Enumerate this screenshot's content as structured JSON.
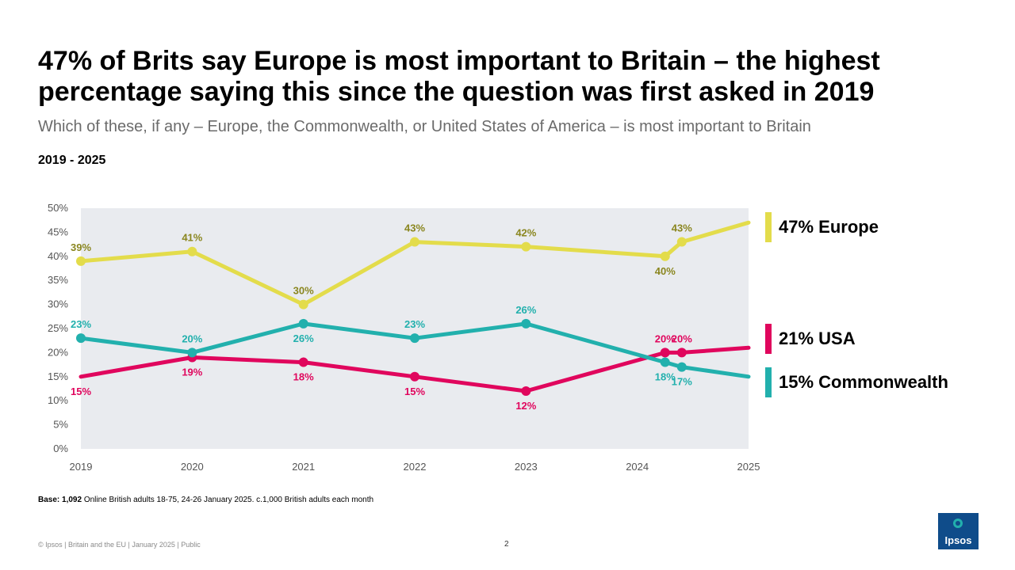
{
  "header": {
    "title": "47% of Brits say Europe is most important to Britain – the highest percentage saying this since the question was first asked in 2019",
    "subtitle": "Which of these, if any – Europe, the Commonwealth, or United States of America – is most important to Britain",
    "period": "2019 - 2025"
  },
  "legend": {
    "europe": "47% Europe",
    "usa": "21% USA",
    "commonwealth": "15% Commonwealth"
  },
  "footer": {
    "base_bold": "Base: 1,092",
    "base_rest": " Online British adults 18-75, 24-26 January 2025. c.1,000 British adults each month",
    "copyright": "© Ipsos | Britain and the EU | January 2025 | Public",
    "page_number": "2",
    "logo_text": "Ipsos"
  },
  "colors": {
    "europe": "#e3dc4b",
    "europe_label": "#8a861f",
    "usa": "#e0065d",
    "commonwealth": "#22b0ad",
    "plot_bg": "#e9ebef"
  },
  "chart_data": {
    "type": "line",
    "x_ticks": [
      2019,
      2020,
      2021,
      2022,
      2023,
      2024,
      2025
    ],
    "x_tick_labels": [
      "2019",
      "2020",
      "2021",
      "2022",
      "2023",
      "2024",
      "2025"
    ],
    "y_ticks": [
      0,
      5,
      10,
      15,
      20,
      25,
      30,
      35,
      40,
      45,
      50
    ],
    "y_tick_labels": [
      "0%",
      "5%",
      "10%",
      "15%",
      "20%",
      "25%",
      "30%",
      "35%",
      "40%",
      "45%",
      "50%"
    ],
    "xlim": [
      2019,
      2025
    ],
    "ylim": [
      0,
      50
    ],
    "series": [
      {
        "name": "Europe",
        "color_key": "europe",
        "x": [
          2019,
          2020,
          2021,
          2022,
          2023,
          2024.25,
          2024.4,
          2025
        ],
        "values": [
          39,
          41,
          30,
          43,
          42,
          40,
          43,
          47
        ],
        "labels": [
          "39%",
          "41%",
          "30%",
          "43%",
          "42%",
          "40%",
          "43%",
          null
        ],
        "label_pos": [
          "above",
          "above",
          "above",
          "above",
          "above",
          "below",
          "above",
          null
        ],
        "markers": [
          true,
          true,
          true,
          true,
          true,
          true,
          true,
          false
        ]
      },
      {
        "name": "USA",
        "color_key": "usa",
        "x": [
          2019,
          2020,
          2021,
          2022,
          2023,
          2024.25,
          2024.4,
          2025
        ],
        "values": [
          15,
          19,
          18,
          15,
          12,
          20,
          20,
          21
        ],
        "labels": [
          "15%",
          "19%",
          "18%",
          "15%",
          "12%",
          "20%",
          "20%",
          null
        ],
        "label_pos": [
          "below",
          "below",
          "below",
          "below",
          "below",
          "above",
          "above",
          null
        ],
        "markers": [
          false,
          true,
          true,
          true,
          true,
          true,
          true,
          false
        ]
      },
      {
        "name": "Commonwealth",
        "color_key": "commonwealth",
        "x": [
          2019,
          2020,
          2021,
          2022,
          2023,
          2024.25,
          2024.4,
          2025
        ],
        "values": [
          23,
          20,
          26,
          23,
          26,
          18,
          17,
          15
        ],
        "labels": [
          "23%",
          "20%",
          "26%",
          "23%",
          "26%",
          "18%",
          "17%",
          null
        ],
        "label_pos": [
          "above",
          "above",
          "below",
          "above",
          "above",
          "below",
          "below",
          null
        ],
        "markers": [
          true,
          true,
          true,
          true,
          true,
          true,
          true,
          false
        ]
      }
    ]
  }
}
